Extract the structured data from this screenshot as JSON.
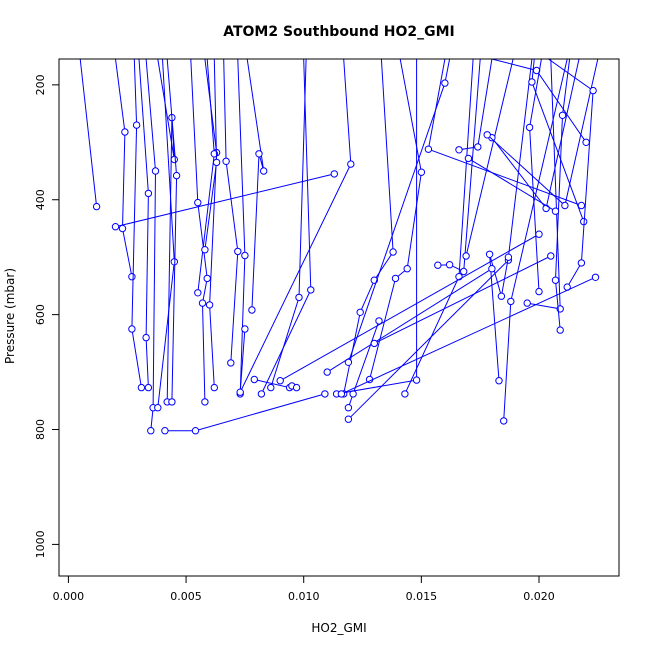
{
  "chart_data": {
    "type": "scatter",
    "title": "ATOM2 Southbound HO2_GMI",
    "xlabel": "HO2_GMI",
    "ylabel": "Pressure (mbar)",
    "xlim": [
      -0.0004,
      0.0234
    ],
    "ylim": [
      1055,
      155
    ],
    "y_reversed": true,
    "x_ticks": [
      0.0,
      0.005,
      0.01,
      0.015,
      0.02
    ],
    "x_tick_labels": [
      "0.000",
      "0.005",
      "0.010",
      "0.015",
      "0.020"
    ],
    "y_ticks": [
      200,
      400,
      600,
      800,
      1000
    ],
    "y_tick_labels": [
      "200",
      "400",
      "600",
      "800",
      "1000"
    ],
    "series": [
      {
        "color": "#0000ff",
        "marker": "open-circle",
        "segments": [
          [
            [
              0.0012,
              412
            ],
            [
              0.0005,
              155
            ]
          ],
          [
            [
              0.002,
              447
            ],
            [
              0.0113,
              355
            ]
          ],
          [
            [
              0.0027,
              534
            ],
            [
              0.0023,
              450
            ],
            [
              0.0024,
              282
            ],
            [
              0.002,
              155
            ]
          ],
          [
            [
              0.0031,
              727
            ],
            [
              0.0027,
              625
            ],
            [
              0.0029,
              270
            ],
            [
              0.0028,
              155
            ]
          ],
          [
            [
              0.0034,
              727
            ],
            [
              0.0033,
              640
            ],
            [
              0.0034,
              389
            ],
            [
              0.003,
              155
            ]
          ],
          [
            [
              0.0035,
              802
            ],
            [
              0.0036,
              762
            ],
            [
              0.0037,
              350
            ],
            [
              0.0033,
              155
            ]
          ],
          [
            [
              0.0041,
              802
            ],
            [
              0.0054,
              802
            ],
            [
              0.0109,
              738
            ]
          ],
          [
            [
              0.0038,
              762
            ],
            [
              0.0045,
              508
            ],
            [
              0.004,
              155
            ]
          ],
          [
            [
              0.0042,
              752
            ],
            [
              0.0044,
              257
            ],
            [
              0.0045,
              330
            ],
            [
              0.0038,
              155
            ]
          ],
          [
            [
              0.0044,
              752
            ],
            [
              0.0046,
              358
            ],
            [
              0.0042,
              155
            ]
          ],
          [
            [
              0.0058,
              752
            ],
            [
              0.0057,
              580
            ],
            [
              0.0059,
              537
            ],
            [
              0.0055,
              405
            ],
            [
              0.0052,
              155
            ]
          ],
          [
            [
              0.0062,
              727
            ],
            [
              0.006,
              583
            ],
            [
              0.0063,
              318
            ],
            [
              0.0058,
              155
            ]
          ],
          [
            [
              0.0055,
              562
            ],
            [
              0.0062,
              320
            ],
            [
              0.0059,
              155
            ]
          ],
          [
            [
              0.0058,
              487
            ],
            [
              0.0063,
              335
            ],
            [
              0.0062,
              155
            ]
          ],
          [
            [
              0.0069,
              684
            ],
            [
              0.0072,
              490
            ],
            [
              0.0067,
              333
            ],
            [
              0.0066,
              155
            ]
          ],
          [
            [
              0.0073,
              738
            ],
            [
              0.0075,
              497
            ],
            [
              0.0072,
              155
            ]
          ],
          [
            [
              0.0078,
              592
            ],
            [
              0.0081,
              320
            ],
            [
              0.0083,
              350
            ],
            [
              0.0076,
              155
            ]
          ],
          [
            [
              0.0082,
              738
            ],
            [
              0.0103,
              557
            ],
            [
              0.01,
              155
            ]
          ],
          [
            [
              0.0075,
              625
            ],
            [
              0.0073,
              735
            ],
            [
              0.012,
              338
            ],
            [
              0.0117,
              155
            ]
          ],
          [
            [
              0.0079,
              713
            ],
            [
              0.0094,
              727
            ],
            [
              0.0095,
              724
            ],
            [
              0.0097,
              727
            ]
          ],
          [
            [
              0.0086,
              727
            ],
            [
              0.0098,
              570
            ],
            [
              0.0101,
              155
            ]
          ],
          [
            [
              0.0117,
              738
            ],
            [
              0.0124,
              596
            ],
            [
              0.013,
              540
            ],
            [
              0.0138,
              491
            ],
            [
              0.0133,
              155
            ]
          ],
          [
            [
              0.0119,
              762
            ],
            [
              0.0121,
              738
            ],
            [
              0.0132,
              611
            ]
          ],
          [
            [
              0.0119,
              782
            ],
            [
              0.0187,
              505
            ]
          ],
          [
            [
              0.0128,
              713
            ],
            [
              0.0139,
              537
            ],
            [
              0.0144,
              520
            ],
            [
              0.015,
              352
            ],
            [
              0.0141,
              155
            ]
          ],
          [
            [
              0.0119,
              683
            ],
            [
              0.016,
              197
            ],
            [
              0.0162,
              155
            ]
          ],
          [
            [
              0.0114,
              738
            ],
            [
              0.0148,
              714
            ],
            [
              0.0148,
              155
            ]
          ],
          [
            [
              0.0143,
              738
            ],
            [
              0.0166,
              534
            ],
            [
              0.0172,
              155
            ]
          ],
          [
            [
              0.0157,
              514
            ],
            [
              0.0162,
              513
            ],
            [
              0.0168,
              525
            ],
            [
              0.0175,
              155
            ]
          ],
          [
            [
              0.0166,
              313
            ],
            [
              0.0174,
              308
            ],
            [
              0.018,
              155
            ]
          ],
          [
            [
              0.0169,
              498
            ],
            [
              0.0189,
              155
            ]
          ],
          [
            [
              0.0183,
              715
            ],
            [
              0.0179,
              495
            ],
            [
              0.0184,
              568
            ],
            [
              0.0187,
              500
            ],
            [
              0.0197,
              155
            ]
          ],
          [
            [
              0.018,
              292
            ],
            [
              0.0203,
              415
            ],
            [
              0.0217,
              155
            ]
          ],
          [
            [
              0.0178,
              287
            ],
            [
              0.0211,
              410
            ],
            [
              0.0225,
              155
            ]
          ],
          [
            [
              0.0185,
              785
            ],
            [
              0.0188,
              577
            ],
            [
              0.0212,
              155
            ]
          ],
          [
            [
              0.0195,
              580
            ],
            [
              0.0209,
              590
            ],
            [
              0.0205,
              155
            ]
          ],
          [
            [
              0.0209,
              627
            ],
            [
              0.0207,
              540
            ],
            [
              0.021,
              253
            ],
            [
              0.0213,
              155
            ]
          ],
          [
            [
              0.022,
              300
            ],
            [
              0.0199,
              175
            ],
            [
              0.018,
              155
            ]
          ],
          [
            [
              0.02,
              560
            ],
            [
              0.0196,
              274
            ],
            [
              0.0201,
              155
            ]
          ],
          [
            [
              0.0219,
              438
            ],
            [
              0.0197,
              195
            ],
            [
              0.0198,
              155
            ]
          ],
          [
            [
              0.0212,
              552
            ],
            [
              0.0218,
              510
            ],
            [
              0.0223,
              210
            ],
            [
              0.0204,
              155
            ]
          ],
          [
            [
              0.0224,
              535
            ],
            [
              0.0116,
              738
            ]
          ],
          [
            [
              0.0218,
              410
            ],
            [
              0.0153,
              312
            ],
            [
              0.016,
              155
            ]
          ],
          [
            [
              0.0207,
              420
            ],
            [
              0.017,
              328
            ]
          ],
          [
            [
              0.018,
              520
            ],
            [
              0.011,
              700
            ]
          ],
          [
            [
              0.02,
              460
            ],
            [
              0.009,
              715
            ]
          ],
          [
            [
              0.0205,
              498
            ],
            [
              0.013,
              650
            ]
          ]
        ]
      }
    ]
  }
}
